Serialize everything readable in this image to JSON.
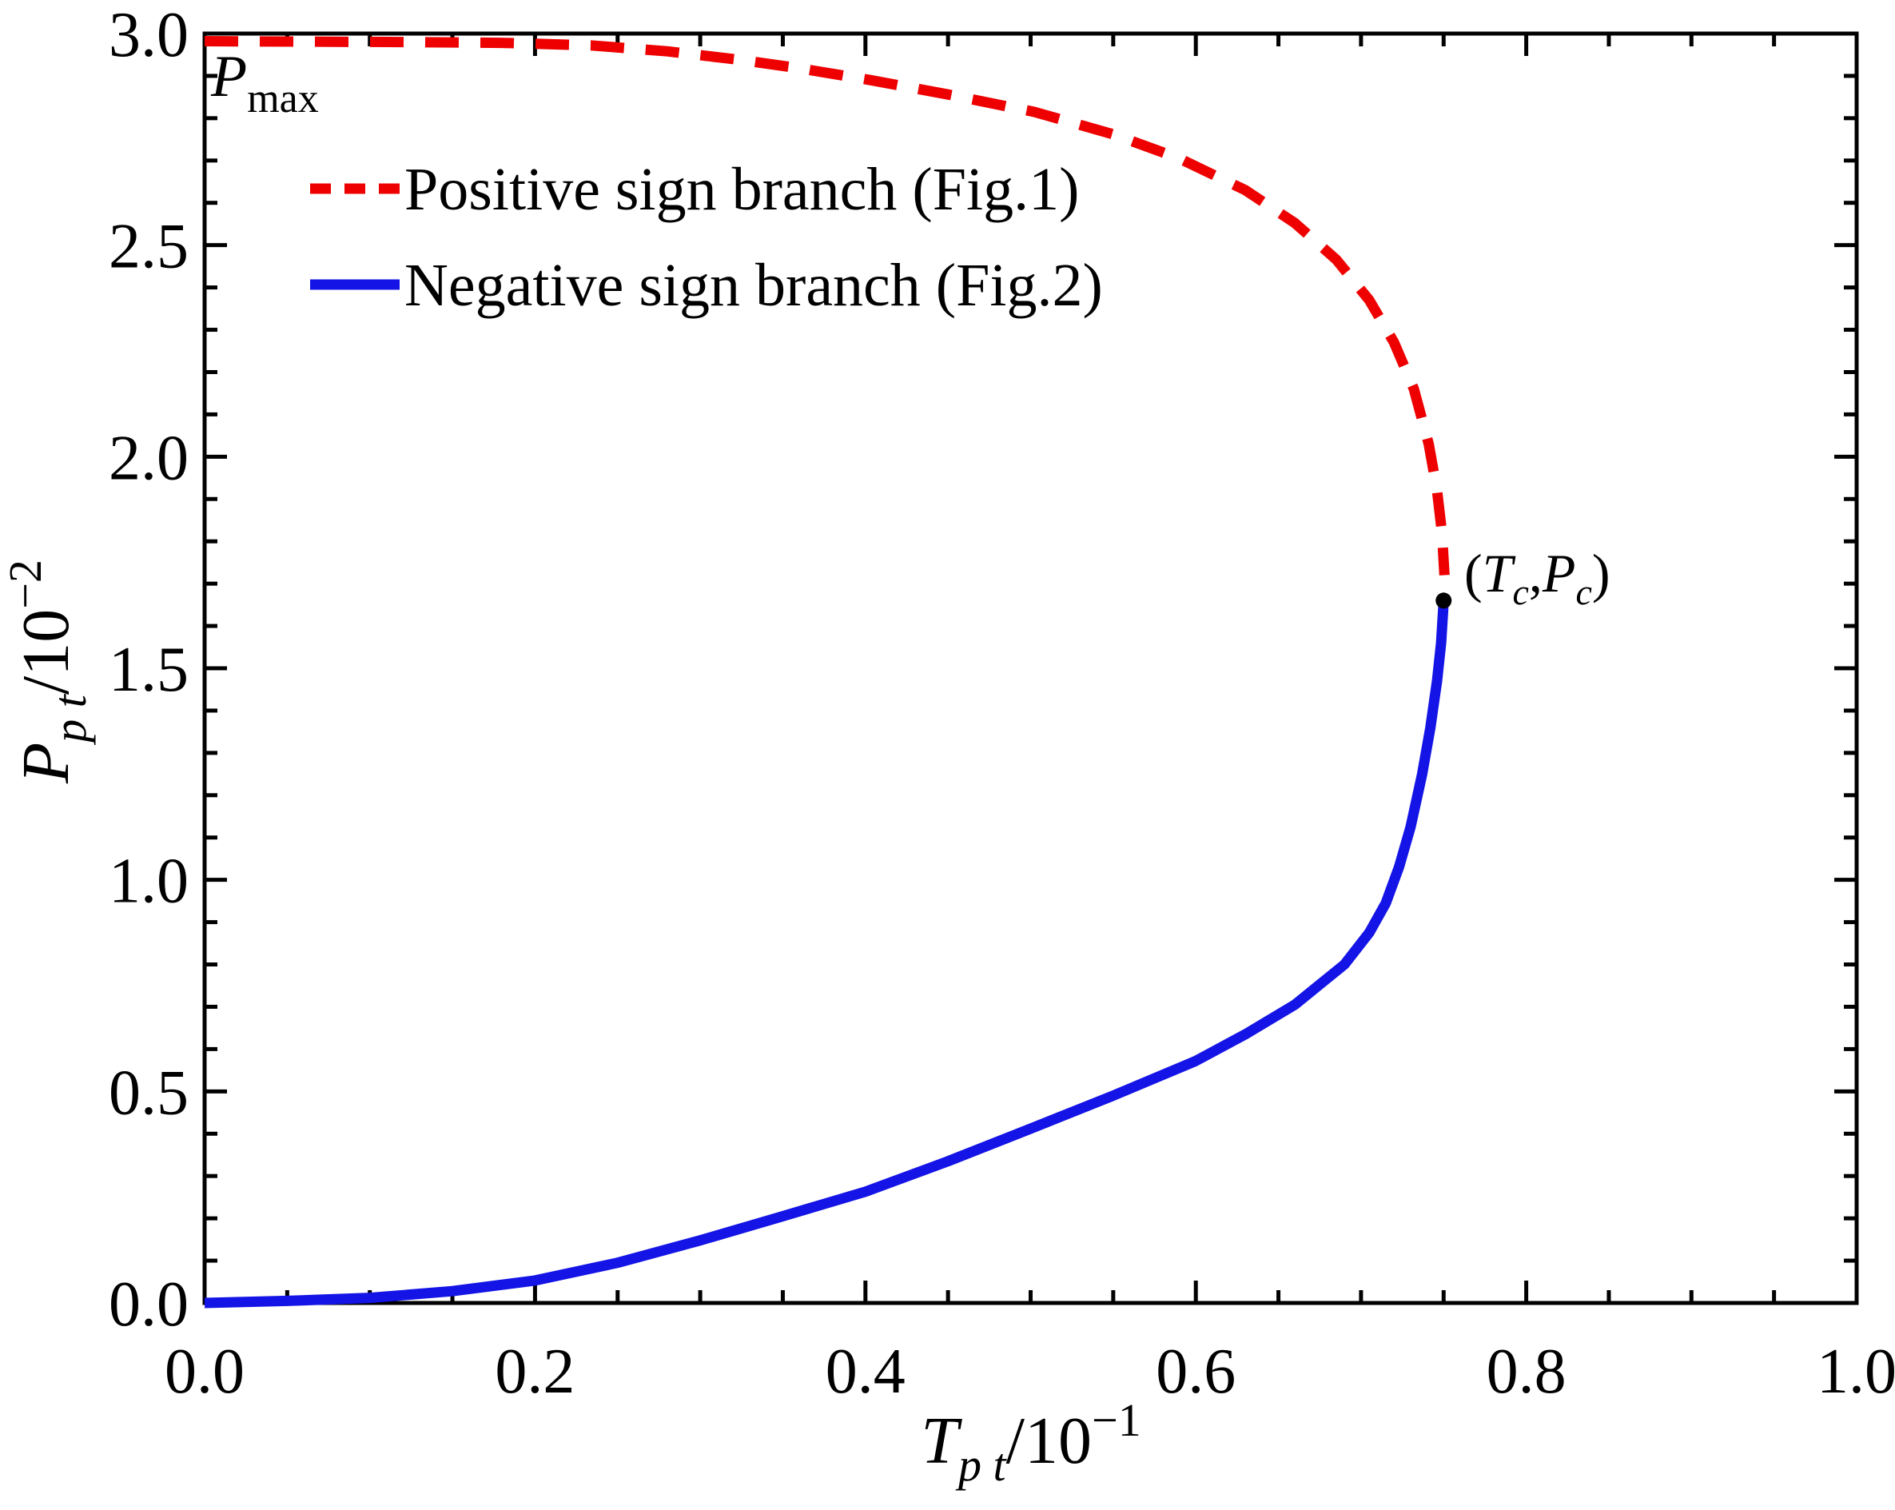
{
  "figure": {
    "pmax_label_parts": [
      {
        "t": "P",
        "style": "it"
      },
      {
        "t": "max",
        "style": "sub-up"
      }
    ],
    "critical_label_parts": [
      {
        "t": "(",
        "style": "up"
      },
      {
        "t": "T",
        "style": "it"
      },
      {
        "t": "c",
        "style": "sub-it"
      },
      {
        "t": ",",
        "style": "up"
      },
      {
        "t": "P",
        "style": "it"
      },
      {
        "t": "c",
        "style": "sub-it"
      },
      {
        "t": ")",
        "style": "up"
      }
    ]
  },
  "axes": {
    "x_title_parts": [
      {
        "t": "T",
        "style": "it"
      },
      {
        "t": "p t",
        "style": "sub-it"
      },
      {
        "t": "/10",
        "style": "up"
      },
      {
        "t": "−1",
        "style": "sup-up"
      }
    ],
    "y_title_parts": [
      {
        "t": "P",
        "style": "it"
      },
      {
        "t": "p t",
        "style": "sub-it"
      },
      {
        "t": "/10",
        "style": "up"
      },
      {
        "t": "−2",
        "style": "sup-up"
      }
    ],
    "x_ticks": [
      {
        "v": 0.0,
        "label": "0.0"
      },
      {
        "v": 0.2,
        "label": "0.2"
      },
      {
        "v": 0.4,
        "label": "0.4"
      },
      {
        "v": 0.6,
        "label": "0.6"
      },
      {
        "v": 0.8,
        "label": "0.8"
      },
      {
        "v": 1.0,
        "label": "1.0"
      }
    ],
    "y_ticks": [
      {
        "v": 0.0,
        "label": "0.0"
      },
      {
        "v": 0.5,
        "label": "0.5"
      },
      {
        "v": 1.0,
        "label": "1.0"
      },
      {
        "v": 1.5,
        "label": "1.5"
      },
      {
        "v": 2.0,
        "label": "2.0"
      },
      {
        "v": 2.5,
        "label": "2.5"
      },
      {
        "v": 3.0,
        "label": "3.0"
      }
    ],
    "x_minor_step": 0.05,
    "y_minor_step": 0.1
  },
  "legend": {
    "items": [
      {
        "label": "Positive sign branch (Fig.1)",
        "color": "#ee0000",
        "line": "dashed"
      },
      {
        "label": "Negative sign branch (Fig.2)",
        "color": "#1414e6",
        "line": "solid"
      }
    ]
  },
  "colors": {
    "positive_branch": "#ee0000",
    "negative_branch": "#1414e6",
    "axis": "#000000",
    "critical_dot": "#000000"
  },
  "chart_data": {
    "type": "line",
    "title": "",
    "xlabel": "T_pt / 10^-1",
    "ylabel": "P_pt / 10^-2",
    "xlim": [
      0.0,
      1.0
    ],
    "ylim": [
      0.0,
      3.0
    ],
    "grid": false,
    "legend_position": "upper-left-inside",
    "annotations": [
      "P_max",
      "(T_c, P_c)"
    ],
    "p_max": 3.0,
    "critical_point": {
      "T": 0.75,
      "P": 1.66
    },
    "series": [
      {
        "name": "Positive sign branch (Fig.1)",
        "style": "dashed",
        "color": "#ee0000",
        "points": [
          [
            0.0,
            2.982
          ],
          [
            0.06,
            2.981
          ],
          [
            0.12,
            2.98
          ],
          [
            0.18,
            2.978
          ],
          [
            0.234,
            2.972
          ],
          [
            0.28,
            2.958
          ],
          [
            0.324,
            2.938
          ],
          [
            0.36,
            2.918
          ],
          [
            0.403,
            2.89
          ],
          [
            0.45,
            2.856
          ],
          [
            0.502,
            2.815
          ],
          [
            0.55,
            2.762
          ],
          [
            0.59,
            2.705
          ],
          [
            0.63,
            2.63
          ],
          [
            0.66,
            2.552
          ],
          [
            0.685,
            2.466
          ],
          [
            0.705,
            2.37
          ],
          [
            0.72,
            2.27
          ],
          [
            0.732,
            2.16
          ],
          [
            0.741,
            2.03
          ],
          [
            0.746,
            1.92
          ],
          [
            0.749,
            1.82
          ],
          [
            0.7505,
            1.72
          ]
        ]
      },
      {
        "name": "Negative sign branch (Fig.2)",
        "style": "solid",
        "color": "#1414e6",
        "points": [
          [
            0.0,
            0.0
          ],
          [
            0.05,
            0.005
          ],
          [
            0.1,
            0.012
          ],
          [
            0.15,
            0.028
          ],
          [
            0.2,
            0.053
          ],
          [
            0.25,
            0.095
          ],
          [
            0.3,
            0.148
          ],
          [
            0.35,
            0.205
          ],
          [
            0.4,
            0.263
          ],
          [
            0.45,
            0.335
          ],
          [
            0.5,
            0.412
          ],
          [
            0.55,
            0.49
          ],
          [
            0.6,
            0.572
          ],
          [
            0.63,
            0.635
          ],
          [
            0.66,
            0.705
          ],
          [
            0.69,
            0.8
          ],
          [
            0.705,
            0.875
          ],
          [
            0.715,
            0.945
          ],
          [
            0.723,
            1.03
          ],
          [
            0.73,
            1.125
          ],
          [
            0.737,
            1.25
          ],
          [
            0.742,
            1.36
          ],
          [
            0.746,
            1.47
          ],
          [
            0.7485,
            1.56
          ],
          [
            0.75,
            1.658
          ]
        ]
      }
    ]
  }
}
